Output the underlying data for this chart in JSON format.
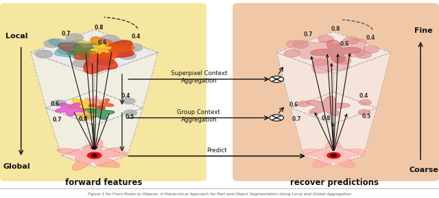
{
  "fig_width": 6.4,
  "fig_height": 2.9,
  "dpi": 100,
  "bg_color": "#ffffff",
  "left_box_color": "#f5e6a0",
  "right_box_color": "#f0c8a8",
  "caption_left": "forward features",
  "caption_right": "recover predictions",
  "label_local": "Local",
  "label_global": "Global",
  "label_fine": "Fine",
  "label_coarse": "Coarse",
  "text_superpixel": "Superpixel Context",
  "text_aggregation1": "Aggregation",
  "text_group": "Group Context",
  "text_aggregation2": "Aggregation",
  "text_predict": "Predict"
}
